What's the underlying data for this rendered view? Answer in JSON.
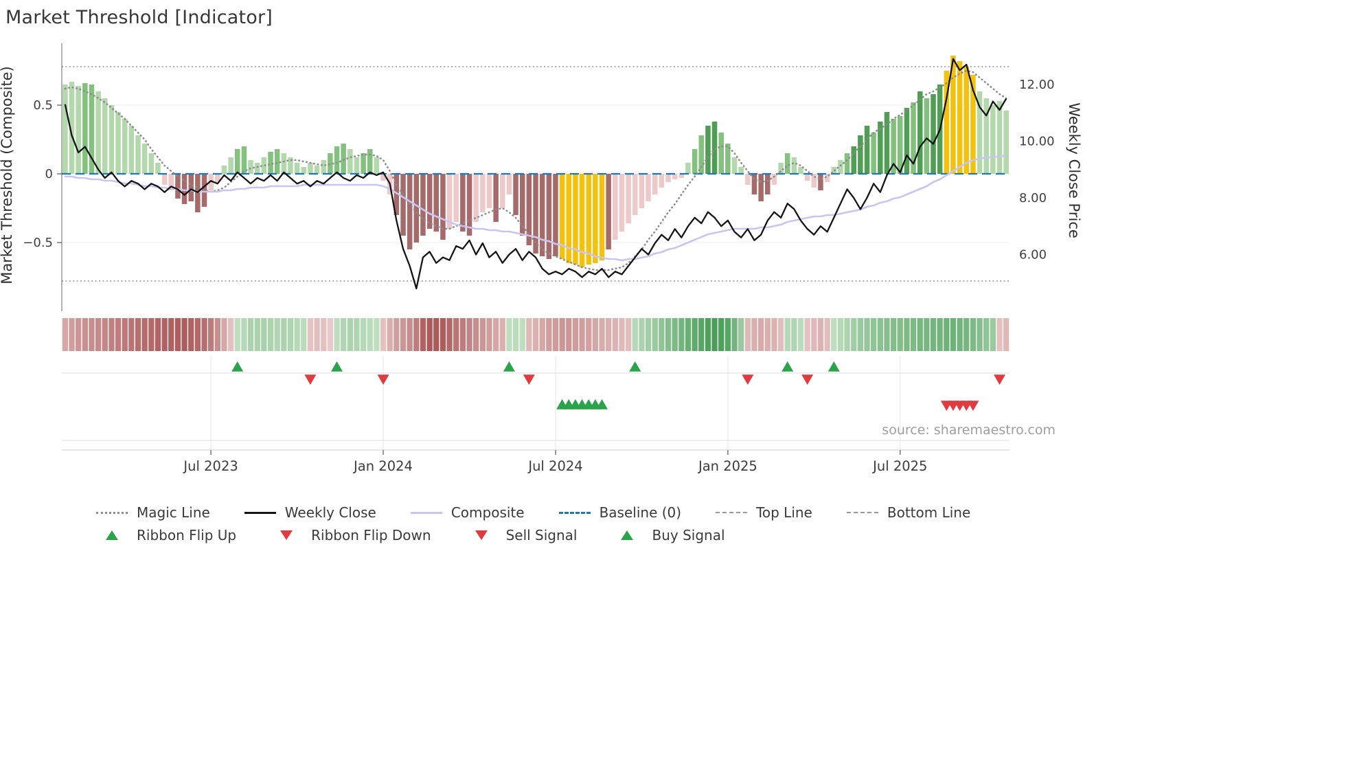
{
  "title": "Market Threshold [Indicator]",
  "source": "source: sharemaestro.com",
  "axes": {
    "left_label": "Market Threshold (Composite)",
    "right_label": "Weekly Close Price",
    "left_ticks": [
      {
        "v": 0.5,
        "label": "0.5"
      },
      {
        "v": 0,
        "label": "0"
      },
      {
        "v": -0.5,
        "label": "−0.5"
      }
    ],
    "right_ticks": [
      {
        "v": 12,
        "label": "12.00"
      },
      {
        "v": 10,
        "label": "10.00"
      },
      {
        "v": 8,
        "label": "8.00"
      },
      {
        "v": 6,
        "label": "6.00"
      }
    ],
    "x_ticks": [
      {
        "i": 22,
        "label": "Jul 2023"
      },
      {
        "i": 48,
        "label": "Jan 2024"
      },
      {
        "i": 74,
        "label": "Jul 2024"
      },
      {
        "i": 100,
        "label": "Jan 2025"
      },
      {
        "i": 126,
        "label": "Jul 2025"
      }
    ],
    "left_range": [
      -1.0,
      0.95
    ],
    "right_range": [
      4.0,
      13.45
    ]
  },
  "chart_data": {
    "type": "bar",
    "title": "Market Threshold [Indicator]",
    "n": 143,
    "baseline": 0,
    "top_line": 0.78,
    "bottom_line": -0.78,
    "bars": [
      0.65,
      0.67,
      0.64,
      0.66,
      0.65,
      0.6,
      0.55,
      0.5,
      0.45,
      0.4,
      0.35,
      0.28,
      0.22,
      0.15,
      0.08,
      -0.08,
      -0.12,
      -0.18,
      -0.22,
      -0.2,
      -0.28,
      -0.24,
      -0.12,
      -0.06,
      0.06,
      0.12,
      0.18,
      0.2,
      0.1,
      0.08,
      0.12,
      0.16,
      0.18,
      0.15,
      0.12,
      0.08,
      0.05,
      0.08,
      0.06,
      0.1,
      0.15,
      0.2,
      0.22,
      0.18,
      0.12,
      0.15,
      0.18,
      0.12,
      -0.05,
      -0.15,
      -0.3,
      -0.45,
      -0.55,
      -0.5,
      -0.45,
      -0.4,
      -0.42,
      -0.48,
      -0.4,
      -0.35,
      -0.42,
      -0.45,
      -0.35,
      -0.28,
      -0.25,
      -0.35,
      -0.25,
      -0.15,
      -0.3,
      -0.45,
      -0.52,
      -0.58,
      -0.6,
      -0.62,
      -0.6,
      -0.62,
      -0.65,
      -0.66,
      -0.68,
      -0.66,
      -0.65,
      -0.63,
      -0.55,
      -0.48,
      -0.42,
      -0.36,
      -0.3,
      -0.25,
      -0.2,
      -0.15,
      -0.1,
      -0.06,
      -0.04,
      -0.03,
      0.08,
      0.18,
      0.28,
      0.35,
      0.38,
      0.3,
      0.22,
      0.12,
      0.05,
      -0.08,
      -0.15,
      -0.2,
      -0.15,
      -0.08,
      0.08,
      0.15,
      0.12,
      0.05,
      -0.05,
      -0.1,
      -0.12,
      -0.06,
      0.05,
      0.1,
      0.15,
      0.2,
      0.28,
      0.35,
      0.3,
      0.38,
      0.45,
      0.4,
      0.42,
      0.48,
      0.52,
      0.6,
      0.55,
      0.58,
      0.65,
      0.75,
      0.86,
      0.82,
      0.78,
      0.72,
      0.6,
      0.55,
      0.5,
      0.53,
      0.46
    ],
    "bar_colors": [
      "lg",
      "lg",
      "lg",
      "mg",
      "mg",
      "lg",
      "lg",
      "lg",
      "lg",
      "lg",
      "lg",
      "lg",
      "lg",
      "lg",
      "lg",
      "lp",
      "lp",
      "dr",
      "dr",
      "dr",
      "dr",
      "dr",
      "lp",
      "lp",
      "lg",
      "lg",
      "mg",
      "mg",
      "lg",
      "lg",
      "lg",
      "mg",
      "mg",
      "lg",
      "lg",
      "lg",
      "lg",
      "lg",
      "lg",
      "lg",
      "mg",
      "mg",
      "mg",
      "lg",
      "lg",
      "mg",
      "mg",
      "lg",
      "lp",
      "lp",
      "dr",
      "dr",
      "dr",
      "dr",
      "dr",
      "dr",
      "dr",
      "dr",
      "lp",
      "lp",
      "dr",
      "dr",
      "lp",
      "lp",
      "lp",
      "dr",
      "lp",
      "lp",
      "dr",
      "dr",
      "dr",
      "dr",
      "dr",
      "dr",
      "dr",
      "gd",
      "gd",
      "gd",
      "gd",
      "gd",
      "gd",
      "gd",
      "dr",
      "lp",
      "lp",
      "lp",
      "lp",
      "lp",
      "lp",
      "lp",
      "lp",
      "lp",
      "lp",
      "lp",
      "lg",
      "mg",
      "mg",
      "dg",
      "dg",
      "mg",
      "mg",
      "lg",
      "lg",
      "lp",
      "dr",
      "dr",
      "dr",
      "lp",
      "lg",
      "mg",
      "lg",
      "lg",
      "lp",
      "lp",
      "dr",
      "lp",
      "lg",
      "lg",
      "mg",
      "dg",
      "dg",
      "dg",
      "mg",
      "dg",
      "dg",
      "mg",
      "mg",
      "dg",
      "mg",
      "dg",
      "mg",
      "dg",
      "dg",
      "gd",
      "gd",
      "gd",
      "gd",
      "gd",
      "lg",
      "lg",
      "lg",
      "lg",
      "lg"
    ],
    "weekly_close": [
      11.3,
      10.2,
      9.6,
      9.8,
      9.4,
      9.0,
      8.7,
      8.9,
      8.6,
      8.4,
      8.6,
      8.5,
      8.3,
      8.5,
      8.4,
      8.2,
      8.4,
      8.3,
      8.1,
      8.3,
      8.2,
      8.4,
      8.6,
      8.5,
      8.8,
      8.6,
      8.9,
      8.7,
      8.5,
      8.7,
      8.6,
      8.8,
      8.6,
      8.9,
      8.7,
      8.5,
      8.6,
      8.4,
      8.6,
      8.5,
      8.7,
      8.9,
      8.7,
      8.6,
      8.8,
      8.7,
      8.9,
      8.8,
      8.9,
      8.5,
      7.2,
      6.2,
      5.6,
      4.8,
      5.9,
      6.1,
      5.7,
      5.9,
      5.8,
      6.3,
      6.2,
      6.5,
      6.0,
      6.4,
      5.9,
      6.1,
      5.7,
      6.0,
      6.2,
      5.8,
      6.1,
      5.9,
      5.5,
      5.3,
      5.4,
      5.3,
      5.5,
      5.4,
      5.2,
      5.4,
      5.3,
      5.5,
      5.2,
      5.4,
      5.3,
      5.6,
      5.9,
      6.2,
      6.0,
      6.4,
      6.7,
      6.5,
      6.9,
      6.6,
      7.0,
      7.3,
      7.1,
      7.5,
      7.3,
      7.0,
      7.2,
      6.8,
      6.6,
      6.9,
      6.5,
      6.7,
      7.2,
      7.5,
      7.3,
      7.8,
      7.6,
      7.2,
      6.9,
      6.7,
      7.0,
      6.8,
      7.3,
      7.8,
      8.3,
      8.0,
      7.6,
      8.0,
      8.5,
      8.2,
      8.8,
      9.2,
      8.9,
      9.5,
      9.2,
      9.8,
      10.1,
      9.9,
      10.4,
      11.5,
      12.9,
      12.5,
      12.7,
      11.8,
      11.2,
      10.9,
      11.4,
      11.1,
      11.5
    ],
    "magic_line": [
      0.62,
      0.63,
      0.62,
      0.6,
      0.58,
      0.55,
      0.52,
      0.48,
      0.44,
      0.4,
      0.35,
      0.3,
      0.25,
      0.18,
      0.12,
      0.06,
      0.02,
      -0.02,
      -0.05,
      -0.08,
      -0.1,
      -0.12,
      -0.13,
      -0.12,
      -0.1,
      -0.06,
      -0.02,
      0.02,
      0.04,
      0.05,
      0.06,
      0.07,
      0.08,
      0.09,
      0.1,
      0.1,
      0.09,
      0.08,
      0.07,
      0.06,
      0.07,
      0.08,
      0.1,
      0.12,
      0.13,
      0.14,
      0.14,
      0.13,
      0.1,
      0.02,
      -0.08,
      -0.15,
      -0.22,
      -0.28,
      -0.33,
      -0.36,
      -0.38,
      -0.4,
      -0.4,
      -0.38,
      -0.36,
      -0.34,
      -0.32,
      -0.3,
      -0.28,
      -0.26,
      -0.25,
      -0.28,
      -0.32,
      -0.38,
      -0.44,
      -0.5,
      -0.55,
      -0.58,
      -0.6,
      -0.62,
      -0.64,
      -0.66,
      -0.68,
      -0.69,
      -0.7,
      -0.7,
      -0.7,
      -0.69,
      -0.68,
      -0.65,
      -0.6,
      -0.55,
      -0.48,
      -0.42,
      -0.35,
      -0.28,
      -0.22,
      -0.15,
      -0.08,
      -0.02,
      0.05,
      0.12,
      0.18,
      0.2,
      0.2,
      0.15,
      0.08,
      0.02,
      -0.04,
      -0.06,
      -0.05,
      -0.02,
      0.02,
      0.06,
      0.08,
      0.06,
      0.02,
      -0.02,
      -0.04,
      -0.02,
      0.02,
      0.06,
      0.1,
      0.15,
      0.2,
      0.25,
      0.3,
      0.33,
      0.36,
      0.4,
      0.43,
      0.46,
      0.5,
      0.54,
      0.58,
      0.6,
      0.63,
      0.66,
      0.7,
      0.73,
      0.75,
      0.74,
      0.7,
      0.66,
      0.62,
      0.58,
      0.55
    ],
    "composite_line": [
      -0.02,
      -0.02,
      -0.03,
      -0.03,
      -0.04,
      -0.04,
      -0.05,
      -0.05,
      -0.06,
      -0.07,
      -0.07,
      -0.08,
      -0.09,
      -0.09,
      -0.1,
      -0.1,
      -0.11,
      -0.11,
      -0.12,
      -0.12,
      -0.13,
      -0.13,
      -0.13,
      -0.13,
      -0.12,
      -0.12,
      -0.11,
      -0.11,
      -0.1,
      -0.1,
      -0.1,
      -0.09,
      -0.09,
      -0.09,
      -0.09,
      -0.09,
      -0.08,
      -0.08,
      -0.08,
      -0.08,
      -0.08,
      -0.08,
      -0.08,
      -0.08,
      -0.08,
      -0.08,
      -0.08,
      -0.08,
      -0.09,
      -0.11,
      -0.14,
      -0.17,
      -0.2,
      -0.23,
      -0.26,
      -0.29,
      -0.31,
      -0.33,
      -0.35,
      -0.37,
      -0.38,
      -0.39,
      -0.4,
      -0.4,
      -0.41,
      -0.41,
      -0.42,
      -0.42,
      -0.43,
      -0.44,
      -0.45,
      -0.46,
      -0.48,
      -0.49,
      -0.51,
      -0.52,
      -0.54,
      -0.55,
      -0.57,
      -0.58,
      -0.6,
      -0.61,
      -0.62,
      -0.62,
      -0.63,
      -0.62,
      -0.62,
      -0.61,
      -0.6,
      -0.58,
      -0.57,
      -0.55,
      -0.54,
      -0.52,
      -0.5,
      -0.48,
      -0.46,
      -0.44,
      -0.43,
      -0.42,
      -0.41,
      -0.4,
      -0.4,
      -0.4,
      -0.4,
      -0.39,
      -0.39,
      -0.38,
      -0.37,
      -0.35,
      -0.34,
      -0.33,
      -0.32,
      -0.31,
      -0.31,
      -0.3,
      -0.3,
      -0.29,
      -0.28,
      -0.27,
      -0.26,
      -0.24,
      -0.23,
      -0.21,
      -0.2,
      -0.18,
      -0.17,
      -0.15,
      -0.13,
      -0.11,
      -0.09,
      -0.06,
      -0.04,
      -0.01,
      0.02,
      0.05,
      0.08,
      0.1,
      0.11,
      0.12,
      0.12,
      0.13,
      0.13
    ],
    "ribbon": [
      -0.35,
      -0.4,
      -0.45,
      -0.48,
      -0.5,
      -0.52,
      -0.55,
      -0.58,
      -0.6,
      -0.62,
      -0.65,
      -0.68,
      -0.7,
      -0.72,
      -0.74,
      -0.75,
      -0.76,
      -0.77,
      -0.78,
      -0.75,
      -0.72,
      -0.68,
      -0.6,
      -0.5,
      -0.35,
      -0.2,
      0.2,
      0.25,
      0.3,
      0.3,
      0.32,
      0.3,
      0.28,
      0.3,
      0.28,
      0.25,
      0.22,
      -0.18,
      -0.22,
      -0.2,
      -0.15,
      0.2,
      0.28,
      0.3,
      0.28,
      0.25,
      0.22,
      0.2,
      -0.2,
      -0.3,
      -0.4,
      -0.45,
      -0.5,
      -0.6,
      -0.75,
      -0.8,
      -0.8,
      -0.78,
      -0.72,
      -0.65,
      -0.6,
      -0.55,
      -0.5,
      -0.45,
      -0.4,
      -0.35,
      -0.3,
      0.2,
      0.22,
      0.2,
      -0.25,
      -0.3,
      -0.35,
      -0.4,
      -0.42,
      -0.45,
      -0.45,
      -0.42,
      -0.4,
      -0.38,
      -0.35,
      -0.32,
      -0.3,
      -0.28,
      -0.25,
      -0.22,
      0.25,
      0.3,
      0.35,
      0.4,
      0.45,
      0.5,
      0.55,
      0.6,
      0.65,
      0.7,
      0.75,
      0.8,
      0.82,
      0.8,
      0.75,
      0.6,
      0.4,
      -0.25,
      -0.3,
      -0.32,
      -0.3,
      -0.28,
      -0.22,
      0.25,
      0.28,
      0.22,
      -0.2,
      -0.25,
      -0.28,
      -0.22,
      0.2,
      0.25,
      0.3,
      0.35,
      0.4,
      0.42,
      0.45,
      0.48,
      0.5,
      0.52,
      0.52,
      0.55,
      0.55,
      0.58,
      0.58,
      0.6,
      0.6,
      0.62,
      0.62,
      0.6,
      0.58,
      0.55,
      0.5,
      0.45,
      0.4,
      -0.2,
      -0.25
    ],
    "signals": {
      "ribbon_flip_up": [
        26,
        41,
        67,
        86,
        109,
        116
      ],
      "ribbon_flip_down": [
        37,
        48,
        70,
        103,
        112,
        141
      ],
      "buy": [
        75,
        76,
        77,
        78,
        79,
        80,
        81
      ],
      "sell": [
        133,
        134,
        135,
        136,
        137
      ]
    }
  },
  "colors": {
    "bar": {
      "lg": "#b3d8ac",
      "mg": "#84c17e",
      "dg": "#4f9e54",
      "lp": "#eec9c9",
      "dr": "#a76a6a",
      "gd": "#f4c20d"
    },
    "magic_line": "#8c8c8c",
    "weekly_close": "#141414",
    "composite_line": "#c9c5ef",
    "baseline": "#2077b4",
    "top_bottom_line": "#8f8f8f",
    "signal_green": "#2aa34b",
    "signal_red": "#e03b41",
    "ribbon_red_light": "#f6e2e2",
    "ribbon_red_dark": "#9a3838",
    "ribbon_green_light": "#e4f2e0",
    "ribbon_green_dark": "#288c3a"
  },
  "legend": {
    "row1": [
      {
        "label": "Magic Line",
        "swatch": "dotted-line",
        "color": "#8c8c8c"
      },
      {
        "label": "Weekly Close",
        "swatch": "solid-line",
        "color": "#141414"
      },
      {
        "label": "Composite",
        "swatch": "solid-line",
        "color": "#c9c5ef"
      },
      {
        "label": "Baseline (0)",
        "swatch": "dashed-line",
        "color": "#2077b4"
      },
      {
        "label": "Top Line",
        "swatch": "dashed-line",
        "color": "#9a9a9a"
      },
      {
        "label": "Bottom Line",
        "swatch": "dashed-line",
        "color": "#9a9a9a"
      }
    ],
    "row2": [
      {
        "label": "Ribbon Flip Up",
        "swatch": "triangle-up",
        "color": "#2aa34b"
      },
      {
        "label": "Ribbon Flip Down",
        "swatch": "triangle-down",
        "color": "#e03b41"
      },
      {
        "label": "Sell Signal",
        "swatch": "triangle-down",
        "color": "#e03b41"
      },
      {
        "label": "Buy Signal",
        "swatch": "triangle-up",
        "color": "#2aa34b"
      }
    ]
  }
}
